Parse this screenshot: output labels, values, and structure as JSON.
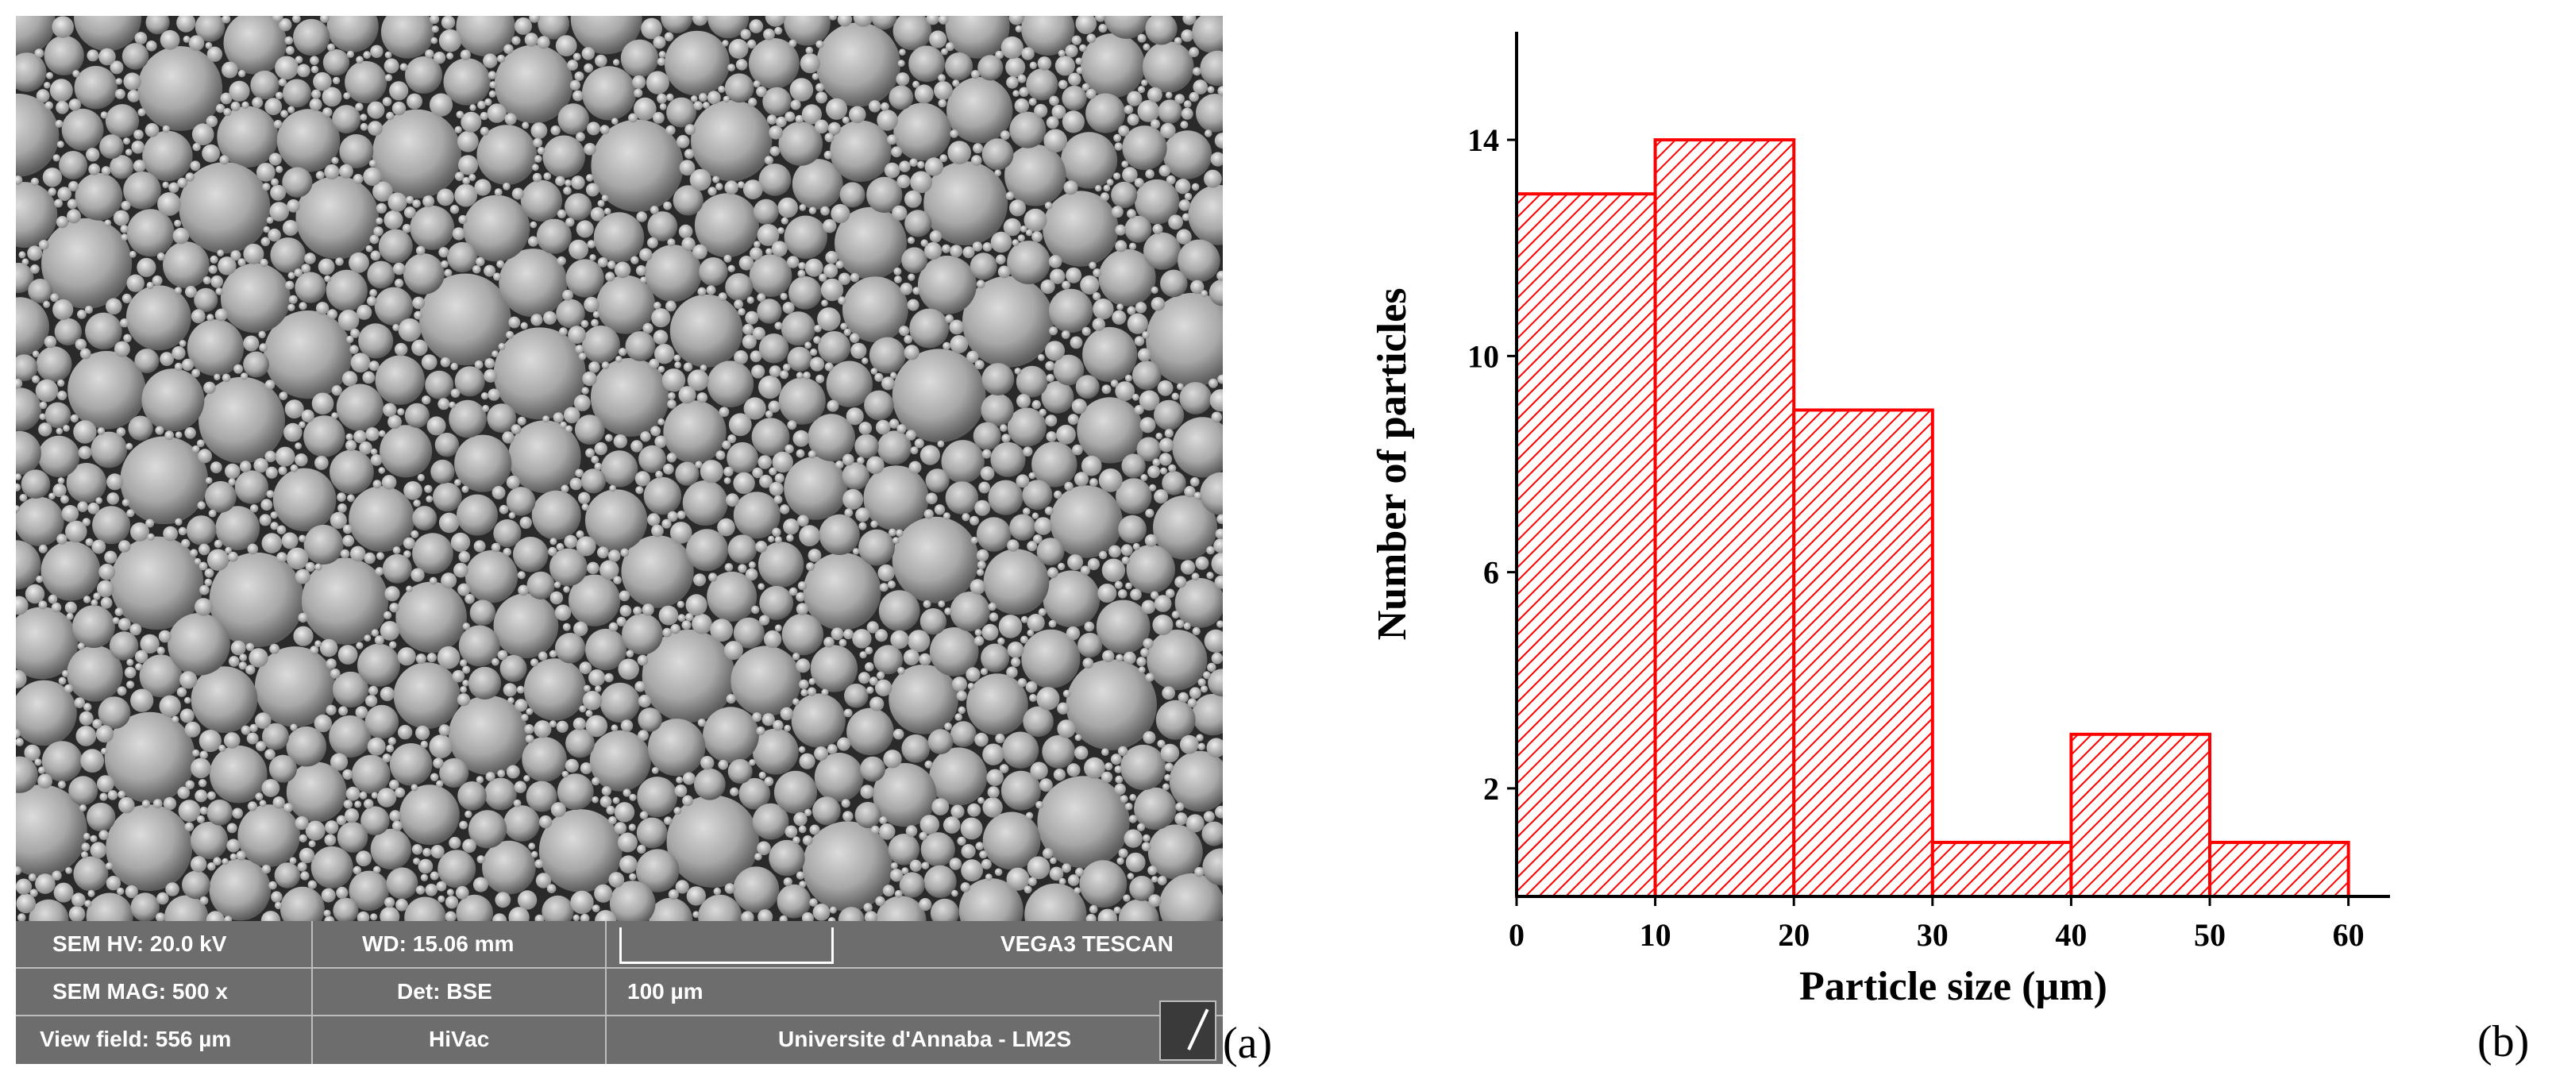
{
  "panel_a": {
    "label": "(a)",
    "sem_info": {
      "hv": "SEM HV: 20.0 kV",
      "wd": "WD: 15.06 mm",
      "mag": "SEM MAG: 500 x",
      "det": "Det: BSE",
      "view_field": "View field: 556 µm",
      "vac_mode": "HiVac",
      "scale_label": "100 µm",
      "instrument": "VEGA3 TESCAN",
      "institution": "Universite d'Annaba - LM2S"
    }
  },
  "panel_b": {
    "label": "(b)"
  },
  "chart_data": {
    "type": "bar",
    "title": "",
    "xlabel": "Particle size (µm)",
    "ylabel": "Number of particles",
    "bin_edges": [
      0,
      10,
      20,
      30,
      40,
      50,
      60
    ],
    "values": [
      13,
      14,
      9,
      1,
      3,
      1
    ],
    "x_ticks": [
      0,
      10,
      20,
      30,
      40,
      50,
      60
    ],
    "y_ticks": [
      2,
      6,
      10,
      14
    ],
    "xlim": [
      0,
      63
    ],
    "ylim": [
      0,
      16
    ],
    "bar_color": "#ff0000",
    "bar_fill": "hatched",
    "grid": false,
    "legend": "none"
  }
}
